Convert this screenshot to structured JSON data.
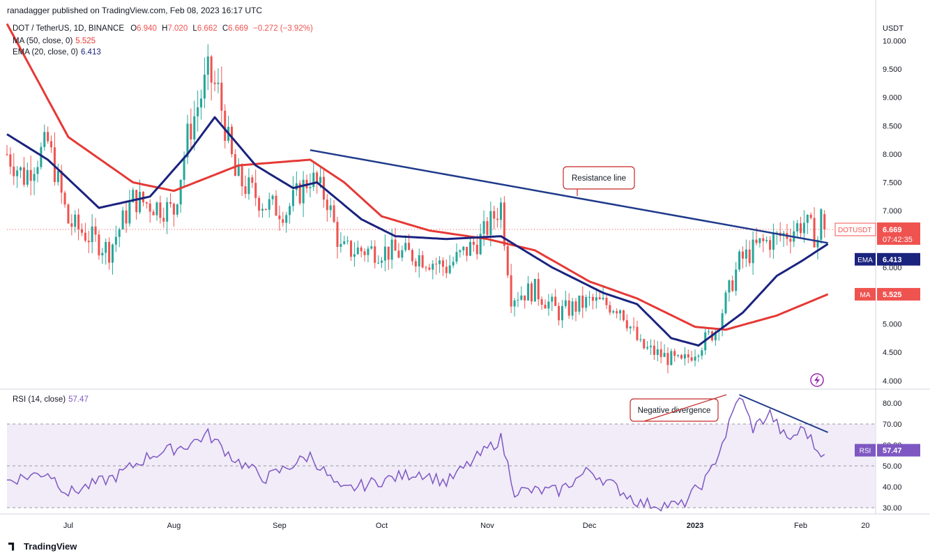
{
  "header": {
    "published": "ranadagger published on TradingView.com, Feb 08, 2023 16:17 UTC"
  },
  "legend": {
    "symbol": "DOT / TetherUS, 1D, BINANCE",
    "o_label": "O",
    "o": "6.940",
    "h_label": "H",
    "h": "7.020",
    "l_label": "L",
    "l": "6.662",
    "c_label": "C",
    "c": "6.669",
    "change": "−0.272 (−3.92%)",
    "ma_label": "MA (50, close, 0)",
    "ma_value": "5.525",
    "ema_label": "EMA (20, close, 0)",
    "ema_value": "6.413",
    "rsi_label": "RSI (14, close)",
    "rsi_value": "57.47"
  },
  "colors": {
    "up": "#26a69a",
    "down": "#ef5350",
    "ema": "#1a237e",
    "ma": "#e53935",
    "trendline": "#1e3a8a",
    "rsi": "#7e57c2",
    "rsi_band": "#ede7f6"
  },
  "price_axis": {
    "unit": "USDT",
    "ticks": [
      "10.000",
      "9.500",
      "9.000",
      "8.500",
      "8.000",
      "7.500",
      "7.000",
      "6.500",
      "6.000",
      "5.500",
      "5.000",
      "4.500",
      "4.000"
    ],
    "labels": [
      {
        "name": "DOTUSDT",
        "value": "6.669",
        "extra": "07:42:35",
        "color": "#ef5350"
      },
      {
        "name": "EMA",
        "value": "6.413",
        "color": "#1a237e"
      },
      {
        "name": "MA",
        "value": "5.525",
        "color": "#ef5350"
      }
    ]
  },
  "rsi_axis": {
    "ticks": [
      "80.00",
      "70.00",
      "60.00",
      "50.00",
      "40.00",
      "30.00"
    ],
    "label": {
      "name": "RSI",
      "value": "57.47"
    }
  },
  "time_axis": [
    "Jul",
    "Aug",
    "Sep",
    "Oct",
    "Nov",
    "Dec",
    "2023",
    "Feb",
    "20"
  ],
  "annotations": {
    "resistance": "Resistance line",
    "divergence": "Negative divergence"
  },
  "brand": "TradingView",
  "chart_data": {
    "type": "candlestick",
    "instrument": "DOT / TetherUS",
    "interval": "1D",
    "price_range": [
      3.85,
      10.35
    ],
    "rsi_range": [
      27,
      86
    ],
    "ma50_keypoints": [
      [
        "2022-06-13",
        10.3
      ],
      [
        "2022-07-01",
        8.3
      ],
      [
        "2022-07-20",
        7.5
      ],
      [
        "2022-08-01",
        7.35
      ],
      [
        "2022-08-20",
        7.8
      ],
      [
        "2022-09-10",
        7.9
      ],
      [
        "2022-09-20",
        7.5
      ],
      [
        "2022-10-01",
        6.9
      ],
      [
        "2022-10-15",
        6.65
      ],
      [
        "2022-11-01",
        6.5
      ],
      [
        "2022-11-15",
        6.3
      ],
      [
        "2022-12-01",
        5.75
      ],
      [
        "2022-12-15",
        5.45
      ],
      [
        "2023-01-01",
        4.95
      ],
      [
        "2023-01-10",
        4.9
      ],
      [
        "2023-01-25",
        5.15
      ],
      [
        "2023-02-09",
        5.525
      ]
    ],
    "ema20_keypoints": [
      [
        "2022-06-13",
        8.35
      ],
      [
        "2022-06-25",
        7.9
      ],
      [
        "2022-07-10",
        7.05
      ],
      [
        "2022-07-25",
        7.25
      ],
      [
        "2022-08-05",
        8.0
      ],
      [
        "2022-08-13",
        8.65
      ],
      [
        "2022-08-25",
        7.8
      ],
      [
        "2022-09-05",
        7.4
      ],
      [
        "2022-09-12",
        7.5
      ],
      [
        "2022-09-25",
        6.85
      ],
      [
        "2022-10-05",
        6.55
      ],
      [
        "2022-10-20",
        6.5
      ],
      [
        "2022-11-05",
        6.55
      ],
      [
        "2022-11-20",
        6.0
      ],
      [
        "2022-12-05",
        5.55
      ],
      [
        "2022-12-15",
        5.35
      ],
      [
        "2022-12-25",
        4.75
      ],
      [
        "2023-01-02",
        4.62
      ],
      [
        "2023-01-15",
        5.2
      ],
      [
        "2023-01-25",
        5.85
      ],
      [
        "2023-02-01",
        6.1
      ],
      [
        "2023-02-09",
        6.413
      ]
    ],
    "resistance_line": [
      [
        "2022-09-10",
        8.07
      ],
      [
        "2023-02-09",
        6.43
      ]
    ],
    "close_keypoints": [
      [
        "2022-06-13",
        8.0
      ],
      [
        "2022-06-18",
        7.6
      ],
      [
        "2022-06-25",
        8.2
      ],
      [
        "2022-07-01",
        6.8
      ],
      [
        "2022-07-13",
        6.3
      ],
      [
        "2022-07-20",
        7.2
      ],
      [
        "2022-08-01",
        7.0
      ],
      [
        "2022-08-05",
        8.3
      ],
      [
        "2022-08-11",
        9.4
      ],
      [
        "2022-08-14",
        9.1
      ],
      [
        "2022-08-19",
        7.6
      ],
      [
        "2022-08-28",
        7.1
      ],
      [
        "2022-09-03",
        7.0
      ],
      [
        "2022-09-10",
        7.6
      ],
      [
        "2022-09-15",
        7.2
      ],
      [
        "2022-09-19",
        6.3
      ],
      [
        "2022-10-01",
        6.3
      ],
      [
        "2022-10-12",
        6.2
      ],
      [
        "2022-10-20",
        6.0
      ],
      [
        "2022-10-30",
        6.5
      ],
      [
        "2022-11-05",
        7.1
      ],
      [
        "2022-11-08",
        5.5
      ],
      [
        "2022-11-15",
        5.6
      ],
      [
        "2022-11-22",
        5.2
      ],
      [
        "2022-12-01",
        5.4
      ],
      [
        "2022-12-10",
        5.3
      ],
      [
        "2022-12-16",
        4.6
      ],
      [
        "2022-12-28",
        4.3
      ],
      [
        "2023-01-07",
        4.9
      ],
      [
        "2023-01-14",
        6.1
      ],
      [
        "2023-01-20",
        6.4
      ],
      [
        "2023-01-28",
        6.6
      ],
      [
        "2023-02-02",
        6.8
      ],
      [
        "2023-02-06",
        6.5
      ],
      [
        "2023-02-07",
        6.9
      ],
      [
        "2023-02-08",
        6.669
      ]
    ],
    "rsi_keypoints": [
      [
        "2022-06-13",
        43
      ],
      [
        "2022-06-25",
        47
      ],
      [
        "2022-07-01",
        37
      ],
      [
        "2022-07-15",
        45
      ],
      [
        "2022-07-25",
        55
      ],
      [
        "2022-08-05",
        60
      ],
      [
        "2022-08-11",
        65
      ],
      [
        "2022-08-19",
        53
      ],
      [
        "2022-08-28",
        44
      ],
      [
        "2022-09-10",
        55
      ],
      [
        "2022-09-19",
        38
      ],
      [
        "2022-10-01",
        43
      ],
      [
        "2022-10-12",
        47
      ],
      [
        "2022-10-20",
        42
      ],
      [
        "2022-11-01",
        58
      ],
      [
        "2022-11-05",
        63
      ],
      [
        "2022-11-09",
        38
      ],
      [
        "2022-11-22",
        38
      ],
      [
        "2022-12-01",
        48
      ],
      [
        "2022-12-16",
        32
      ],
      [
        "2022-12-28",
        31
      ],
      [
        "2023-01-05",
        45
      ],
      [
        "2023-01-10",
        65
      ],
      [
        "2023-01-14",
        84
      ],
      [
        "2023-01-18",
        68
      ],
      [
        "2023-01-23",
        75
      ],
      [
        "2023-01-28",
        62
      ],
      [
        "2023-02-02",
        68
      ],
      [
        "2023-02-06",
        57
      ],
      [
        "2023-02-08",
        57.47
      ]
    ],
    "rsi_divergence_line": [
      [
        "2023-01-14",
        84
      ],
      [
        "2023-02-09",
        66
      ]
    ],
    "rsi_levels": [
      70,
      50,
      30
    ]
  }
}
